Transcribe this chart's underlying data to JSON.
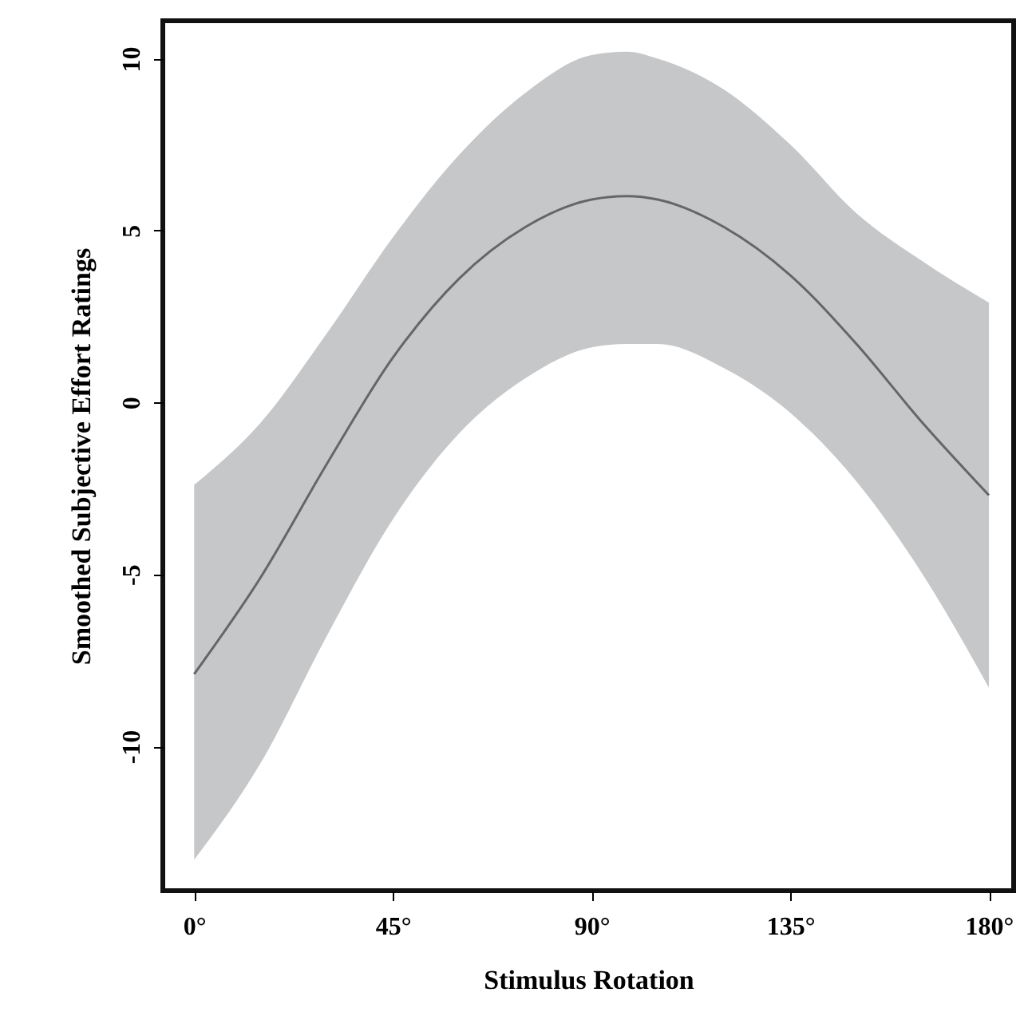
{
  "chart_data": {
    "type": "line",
    "xlabel": "Stimulus Rotation",
    "ylabel": "Smoothed Subjective Effort Ratings",
    "x": [
      0,
      15,
      30,
      45,
      60,
      75,
      90,
      98,
      105,
      120,
      135,
      150,
      165,
      180
    ],
    "series": [
      {
        "color": "#666666",
        "values": [
          -7.9,
          -5.1,
          -1.8,
          1.3,
          3.6,
          5.1,
          5.9,
          6.0,
          5.9,
          5.1,
          3.7,
          1.7,
          -0.6,
          -2.7
        ],
        "lower": [
          -13.3,
          -10.5,
          -6.8,
          -3.4,
          -0.9,
          0.7,
          1.6,
          1.7,
          1.7,
          1.0,
          -0.3,
          -2.3,
          -5.0,
          -8.3
        ],
        "upper": [
          -2.4,
          -0.6,
          2.0,
          4.8,
          7.2,
          9.0,
          10.1,
          10.2,
          10.0,
          9.1,
          7.5,
          5.5,
          4.1,
          2.9
        ]
      }
    ],
    "xlim": [
      -7.1,
      185.6
    ],
    "ylim": [
      -14.2,
      11.1
    ],
    "xticks": [
      {
        "value": 0,
        "label": "0°"
      },
      {
        "value": 45,
        "label": "45°"
      },
      {
        "value": 90,
        "label": "90°"
      },
      {
        "value": 135,
        "label": "135°"
      },
      {
        "value": 180,
        "label": "180°"
      }
    ],
    "yticks": [
      -10,
      -5,
      0,
      5,
      10
    ],
    "marker": "none",
    "line_style": "solid"
  }
}
